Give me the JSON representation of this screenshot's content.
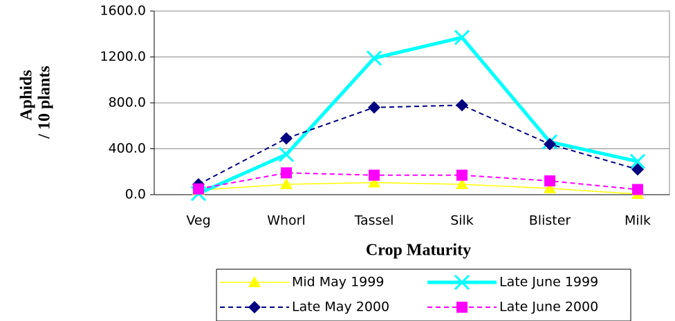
{
  "chart_data": {
    "type": "line",
    "ylabel": [
      "Aphids",
      "/ 10 plants"
    ],
    "xlabel": "Crop Maturity",
    "categories": [
      "Veg",
      "Whorl",
      "Tassel",
      "Silk",
      "Blister",
      "Milk"
    ],
    "ylim": [
      0,
      1600
    ],
    "yticks": [
      {
        "value": 0,
        "label": "0.0"
      },
      {
        "value": 400,
        "label": "400.0"
      },
      {
        "value": 800,
        "label": "800.0"
      },
      {
        "value": 1200,
        "label": "1200.0"
      },
      {
        "value": 1600,
        "label": "1600.0"
      }
    ],
    "grid": true,
    "series": [
      {
        "name": "Mid May 1999",
        "color": "#ffff00",
        "marker": "triangle",
        "dash": "solid",
        "values": [
          40,
          90,
          105,
          90,
          55,
          5
        ]
      },
      {
        "name": "Late June 1999",
        "color": "#00ffff",
        "marker": "x",
        "dash": "solid",
        "values": [
          10,
          350,
          1190,
          1370,
          460,
          290
        ]
      },
      {
        "name": "Late May 2000",
        "color": "#000080",
        "marker": "diamond",
        "dash": "dashed",
        "values": [
          90,
          490,
          760,
          780,
          440,
          220
        ]
      },
      {
        "name": "Late June 2000",
        "color": "#ff00ff",
        "marker": "square",
        "dash": "dashed",
        "values": [
          50,
          190,
          170,
          170,
          120,
          45
        ]
      }
    ]
  }
}
